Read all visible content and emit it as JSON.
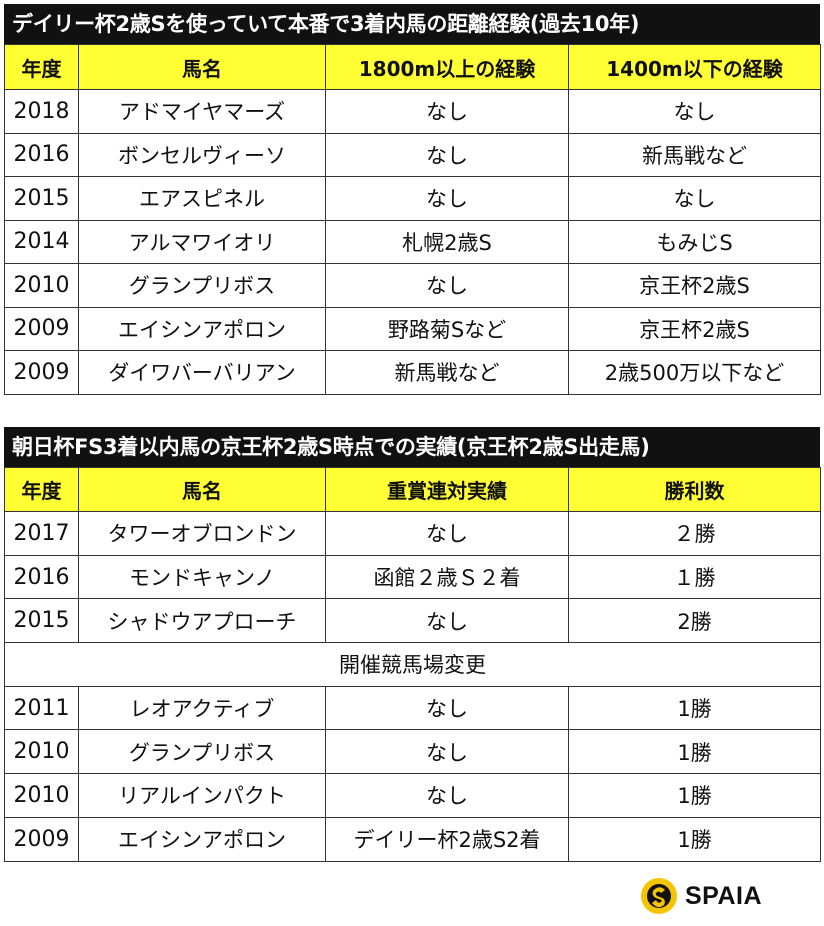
{
  "table1": {
    "title": "デイリー杯2歳Sを使っていて本番で3着内馬の距離経験(過去10年)",
    "headers": [
      "年度",
      "馬名",
      "1800m以上の経験",
      "1400m以下の経験"
    ],
    "rows": [
      [
        "2018",
        "アドマイヤマーズ",
        "なし",
        "なし"
      ],
      [
        "2016",
        "ボンセルヴィーソ",
        "なし",
        "新馬戦など"
      ],
      [
        "2015",
        "エアスピネル",
        "なし",
        "なし"
      ],
      [
        "2014",
        "アルマワイオリ",
        "札幌2歳S",
        "もみじS"
      ],
      [
        "2010",
        "グランプリボス",
        "なし",
        "京王杯2歳S"
      ],
      [
        "2009",
        "エイシンアポロン",
        "野路菊Sなど",
        "京王杯2歳S"
      ],
      [
        "2009",
        "ダイワバーバリアン",
        "新馬戦など",
        "2歳500万以下など"
      ]
    ]
  },
  "table2": {
    "title": "朝日杯FS3着以内馬の京王杯2歳S時点での実績(京王杯2歳S出走馬)",
    "headers": [
      "年度",
      "馬名",
      "重賞連対実績",
      "勝利数"
    ],
    "rows_a": [
      [
        "2017",
        "タワーオブロンドン",
        "なし",
        "２勝"
      ],
      [
        "2016",
        "モンドキャンノ",
        "函館２歳Ｓ２着",
        "１勝"
      ],
      [
        "2015",
        "シャドウアプローチ",
        "なし",
        "2勝"
      ]
    ],
    "separator": "開催競馬場変更",
    "rows_b": [
      [
        "2011",
        "レオアクティブ",
        "なし",
        "1勝"
      ],
      [
        "2010",
        "グランプリボス",
        "なし",
        "1勝"
      ],
      [
        "2010",
        "リアルインパクト",
        "なし",
        "1勝"
      ],
      [
        "2009",
        "エイシンアポロン",
        "デイリー杯2歳S2着",
        "1勝"
      ]
    ]
  },
  "logo": {
    "text": "SPAIA",
    "icon": "spaia-logo-icon",
    "accent": "#f5c400"
  }
}
